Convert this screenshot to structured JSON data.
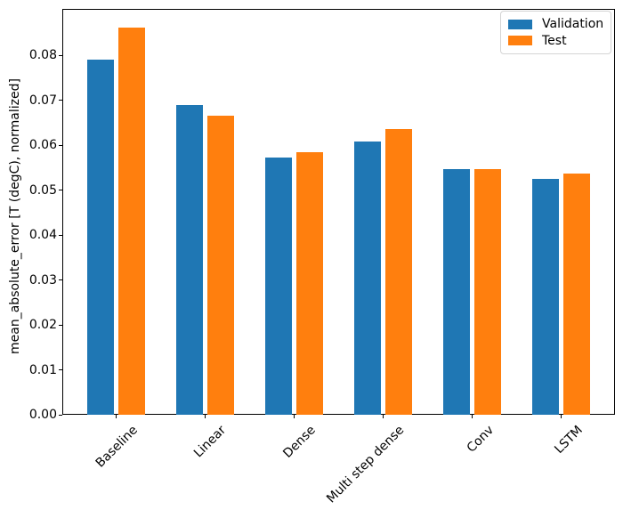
{
  "chart_data": {
    "type": "bar",
    "title": "",
    "xlabel": "",
    "ylabel": "mean_absolute_error [T (degC), normalized]",
    "categories": [
      "Baseline",
      "Linear",
      "Dense",
      "Multi step dense",
      "Conv",
      "LSTM"
    ],
    "series": [
      {
        "name": "Validation",
        "color": "#1f77b4",
        "values": [
          0.0791,
          0.069,
          0.0573,
          0.0608,
          0.0547,
          0.0525
        ]
      },
      {
        "name": "Test",
        "color": "#ff7f0e",
        "values": [
          0.0862,
          0.0666,
          0.0585,
          0.0636,
          0.0546,
          0.0537
        ]
      }
    ],
    "ylim": [
      0,
      0.0903
    ],
    "yticks": [
      0,
      0.01,
      0.02,
      0.03,
      0.04,
      0.05,
      0.06,
      0.07,
      0.08
    ],
    "ytick_labels": [
      "0.00",
      "0.01",
      "0.02",
      "0.03",
      "0.04",
      "0.05",
      "0.06",
      "0.07",
      "0.08"
    ],
    "x_tick_rotation_deg": 45,
    "grid": false,
    "legend": {
      "position": "upper right",
      "entries": [
        "Validation",
        "Test"
      ]
    },
    "colors": {
      "validation": "#1f77b4",
      "test": "#ff7f0e",
      "spine": "#000000",
      "background": "#ffffff"
    }
  }
}
